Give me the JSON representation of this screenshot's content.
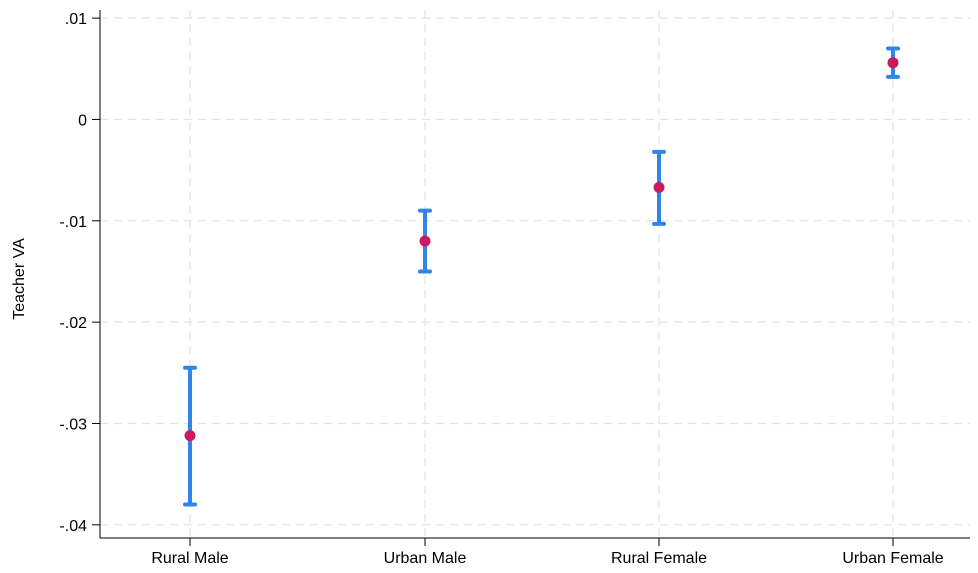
{
  "chart_data": {
    "type": "scatter",
    "title": "",
    "xlabel": "",
    "ylabel": "Teacher VA",
    "categories": [
      "Rural Male",
      "Urban Male",
      "Rural Female",
      "Urban Female"
    ],
    "series": [
      {
        "point_estimates": [
          -0.0312,
          -0.012,
          -0.0067,
          0.0056
        ],
        "ci_lower": [
          -0.038,
          -0.015,
          -0.0103,
          0.0042
        ],
        "ci_upper": [
          -0.0245,
          -0.009,
          -0.0032,
          0.007
        ]
      }
    ],
    "ylim": [
      -0.0413,
      0.0108
    ],
    "yticks": [
      0.01,
      0,
      -0.01,
      -0.02,
      -0.03,
      -0.04
    ],
    "ytick_labels": [
      ".01",
      "0",
      "-.01",
      "-.02",
      "-.03",
      "-.04"
    ],
    "grid": true,
    "legend": "none",
    "colors": {
      "point": "#cc1a5c",
      "error_bar": "#2f86e8",
      "grid": "#e3e3e3",
      "axis": "#000000"
    }
  }
}
